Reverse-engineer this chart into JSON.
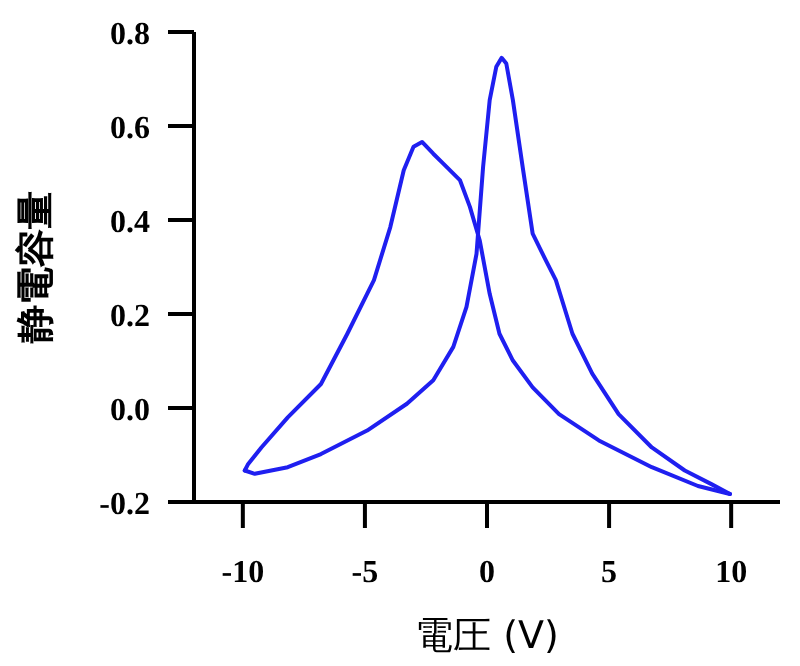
{
  "chart_data": {
    "type": "line",
    "xlabel": "電圧 (V)",
    "ylabel": "静電容量",
    "xlim": [
      -12,
      12
    ],
    "ylim": [
      -0.2,
      0.8
    ],
    "xticks": [
      -10,
      -5,
      0,
      5,
      10
    ],
    "yticks": [
      {
        "value": -0.2,
        "label": "-0.2"
      },
      {
        "value": 0,
        "label": "0.0"
      },
      0.2,
      0.4,
      0.6,
      0.8
    ],
    "grid": false,
    "marker": "none",
    "line_style": "solid",
    "series": [
      {
        "color": "#1f1ff0",
        "x": [
          9.95,
          8.64,
          6.75,
          4.58,
          2.95,
          1.87,
          1.06,
          0.51,
          0.11,
          -0.3,
          -0.7,
          -1.11,
          -1.79,
          -2.2,
          -2.66,
          -3.01,
          -3.41,
          -3.96,
          -4.63,
          -5.72,
          -6.8,
          -8.16,
          -9.24,
          -9.78,
          -9.92
        ],
        "values": [
          -0.183,
          -0.166,
          -0.126,
          -0.069,
          -0.013,
          0.044,
          0.101,
          0.158,
          0.243,
          0.357,
          0.428,
          0.485,
          0.52,
          0.541,
          0.566,
          0.556,
          0.506,
          0.385,
          0.272,
          0.158,
          0.051,
          -0.02,
          -0.084,
          -0.119,
          -0.133
        ]
      },
      {
        "color": "#1f1ff0",
        "x": [
          -9.92,
          -9.51,
          -8.16,
          -6.8,
          -4.91,
          -3.28,
          -2.2,
          -1.38,
          -0.84,
          -0.43,
          -0.16,
          0.11,
          0.38,
          0.6,
          0.79,
          1.06,
          1.46,
          1.87,
          2.41,
          2.82,
          3.5,
          4.31,
          5.39,
          6.75,
          8.1,
          9.19,
          9.95
        ],
        "values": [
          -0.133,
          -0.14,
          -0.126,
          -0.098,
          -0.048,
          0.009,
          0.059,
          0.13,
          0.215,
          0.328,
          0.513,
          0.655,
          0.726,
          0.745,
          0.733,
          0.655,
          0.513,
          0.371,
          0.314,
          0.272,
          0.158,
          0.073,
          -0.013,
          -0.084,
          -0.133,
          -0.162,
          -0.183
        ]
      }
    ]
  }
}
